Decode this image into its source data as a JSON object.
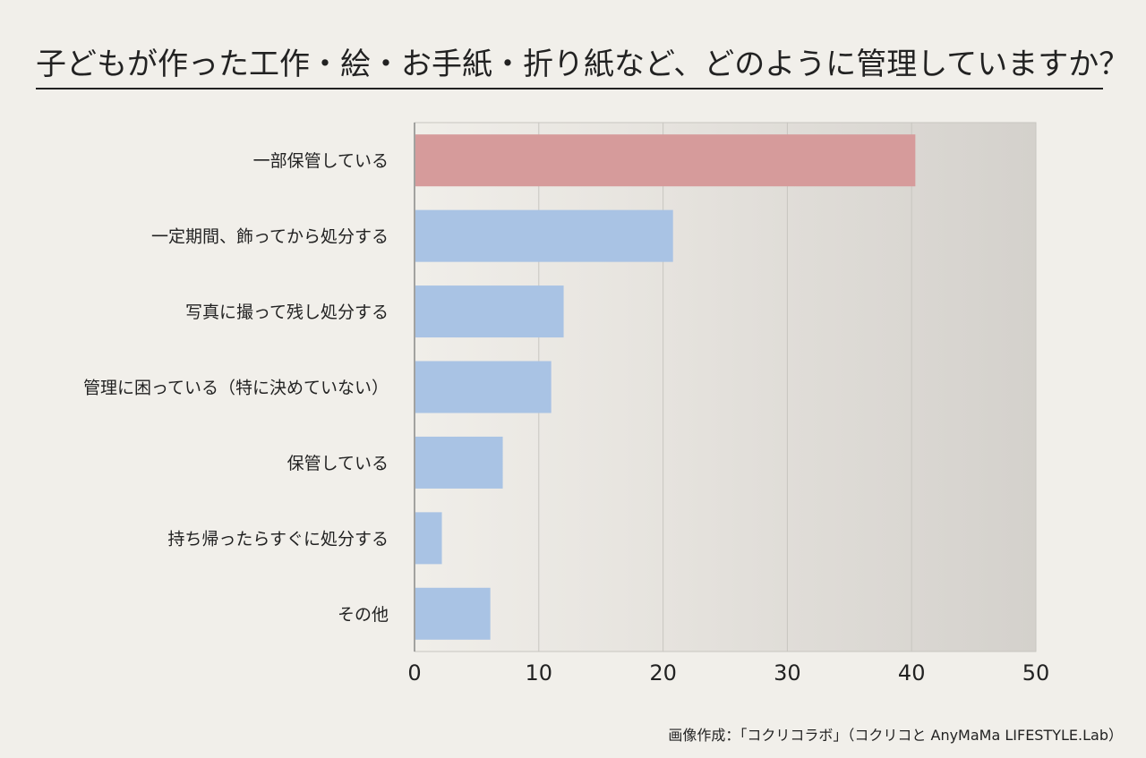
{
  "chart_data": {
    "type": "bar",
    "orientation": "horizontal",
    "title": "子どもが作った工作・絵・お手紙・折り紙など、どのように管理していますか？",
    "categories": [
      "一部保管している",
      "一定期間、飾ってから処分する",
      "写真に撮って残し処分する",
      "管理に困っている（特に決めていない）",
      "保管している",
      "持ち帰ったらすぐに処分する",
      "その他"
    ],
    "values": [
      40.3,
      20.8,
      12.0,
      11.0,
      7.1,
      2.2,
      6.1
    ],
    "highlight_index": 0,
    "xlim": [
      0,
      50
    ],
    "xticks": [
      "0",
      "10",
      "20",
      "30",
      "40",
      "50"
    ],
    "xtick_values": [
      0,
      10,
      20,
      30,
      40,
      50
    ],
    "grid": true,
    "colors": {
      "highlight": "#d69b9b",
      "bar": "#a9c3e4",
      "grid": "#c8c6c0",
      "axis": "#888888",
      "background": "#f1efea"
    },
    "xlabel": "",
    "ylabel": ""
  },
  "footer": {
    "credit": "画像作成：「コクリコラボ」（コクリコと AnyMaMa LIFESTYLE.Lab）"
  }
}
